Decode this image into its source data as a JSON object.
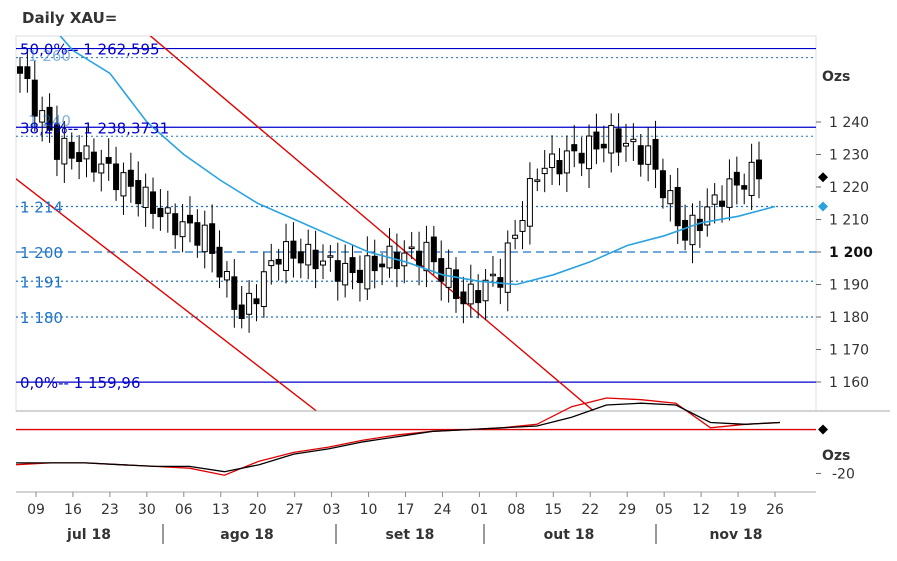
{
  "title": "Daily XAU=",
  "colors": {
    "fib": "#0000cc",
    "dotted": "#1e73c8",
    "trend": "#e00000",
    "ma": "#29a3e0",
    "candle": "#000000",
    "osc_red": "#e00000",
    "osc_black": "#000000"
  },
  "chart_data": {
    "type": "candlestick",
    "instrument": "XAU=",
    "y_unit": "Ozs",
    "ylim": [
      1152,
      1278
    ],
    "y_ticks": [
      {
        "value": 1240,
        "label": "1 240"
      },
      {
        "value": 1230,
        "label": "1 230"
      },
      {
        "value": 1220,
        "label": "1 220"
      },
      {
        "value": 1210,
        "label": "1 210"
      },
      {
        "value": 1200,
        "label": "1 200",
        "bold": true
      },
      {
        "value": 1190,
        "label": "1 190"
      },
      {
        "value": 1180,
        "label": "1 180"
      },
      {
        "value": 1170,
        "label": "1 170"
      },
      {
        "value": 1160,
        "label": "1 160"
      }
    ],
    "fib_levels": [
      {
        "value": 1262.595,
        "label": "50,0%-- 1 262,595"
      },
      {
        "value": 1238.3731,
        "label": "38,2%-- 1 238,3731"
      },
      {
        "value": 1159.96,
        "label": "0,0%-- 1 159,96"
      }
    ],
    "hlines": [
      {
        "value": 1214,
        "label": "1 214",
        "style": "dotted"
      },
      {
        "value": 1200,
        "label": "1 200",
        "style": "dashed"
      },
      {
        "value": 1191,
        "label": "1 191",
        "style": "dotted"
      },
      {
        "value": 1180,
        "label": "1 180",
        "style": "dotted"
      }
    ],
    "obscured_labels": [
      "1 260",
      "1 240"
    ],
    "x_days": [
      "09",
      "16",
      "23",
      "30",
      "06",
      "13",
      "20",
      "27",
      "03",
      "10",
      "17",
      "24",
      "01",
      "08",
      "15",
      "22",
      "29",
      "05",
      "12",
      "19",
      "26"
    ],
    "x_months": [
      "jul 18",
      "ago 18",
      "set 18",
      "out 18",
      "nov 18"
    ],
    "weekly_closes": [
      1255,
      1232,
      1228,
      1220,
      1210,
      1205,
      1180,
      1200,
      1198,
      1193,
      1198,
      1200,
      1185,
      1193,
      1225,
      1230,
      1235,
      1230,
      1205,
      1218,
      1225
    ],
    "ma_values": [
      1275,
      1262,
      1255,
      1240,
      1230,
      1222,
      1215,
      1210,
      1205,
      1200,
      1197,
      1193,
      1191,
      1190,
      1193,
      1197,
      1202,
      1205,
      1209,
      1211,
      1214
    ],
    "last_price": 1223,
    "ma_last": 1214,
    "oscillator": {
      "unit": "Ozs",
      "ticks": [
        {
          "value": -20,
          "label": "-20"
        }
      ],
      "ylim": [
        -30,
        15
      ],
      "zero_line": 5,
      "red_series": [
        -15,
        -14,
        -14,
        -15,
        -16,
        -17,
        -21,
        -13,
        -8,
        -5,
        -1,
        2,
        4,
        5,
        6,
        8,
        18,
        23,
        22,
        20,
        6,
        8,
        9
      ],
      "black_series": [
        -14,
        -14,
        -14,
        -15,
        -16,
        -16,
        -19,
        -15,
        -9,
        -6,
        -2,
        1,
        4,
        5,
        6,
        7,
        12,
        19,
        20,
        19,
        9,
        8,
        9
      ],
      "last_marker": 5
    }
  }
}
